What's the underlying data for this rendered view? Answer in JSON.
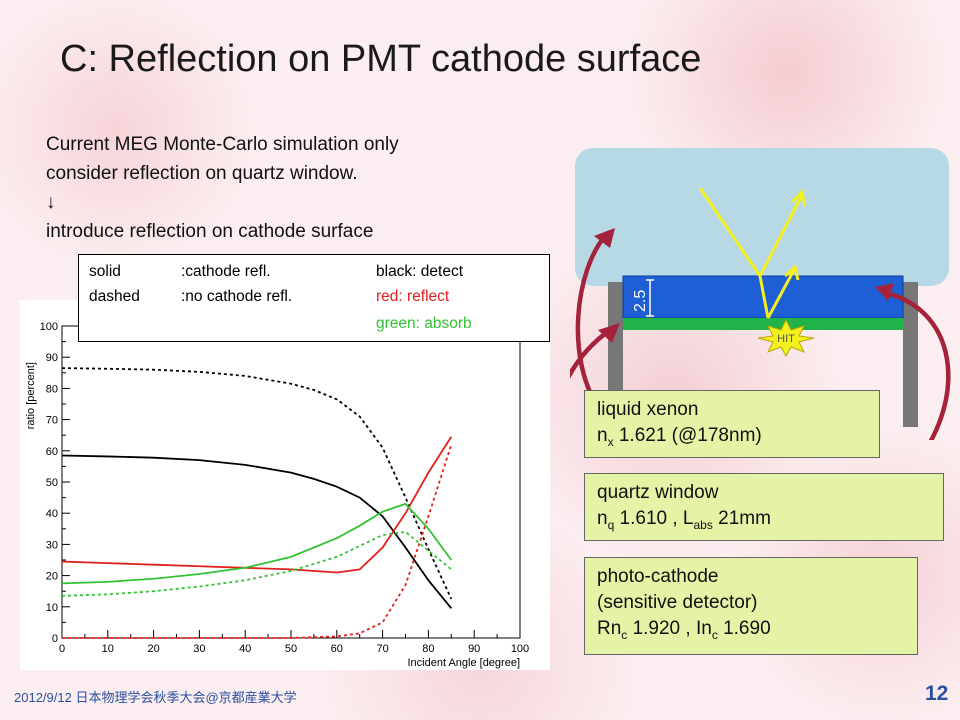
{
  "title": "C: Reflection on PMT cathode surface",
  "intro": {
    "line1": "Current MEG Monte-Carlo simulation only",
    "line2": "consider reflection on quartz window.",
    "arrow": "↓",
    "line3": "introduce reflection on cathode surface"
  },
  "legend": {
    "solid": "solid",
    "solid_desc": ":cathode refl.",
    "dashed": "dashed",
    "dashed_desc": ":no cathode refl.",
    "black": "black: detect",
    "red": "red: reflect",
    "green": "green: absorb"
  },
  "colors": {
    "detect": "#000000",
    "reflect": "#e0201c",
    "absorb": "#33c233",
    "xenon": "#b7d9e6",
    "quartz": "#1e5fd6",
    "cathode": "#21b34a",
    "arrow": "#a4233a",
    "ray": "#f4ef1e",
    "box": "#e4f3a6"
  },
  "chart_data": {
    "type": "line",
    "xlabel": "Incident Angle [degree]",
    "ylabel": "ratio [percent]",
    "xlim": [
      0,
      100
    ],
    "ylim": [
      0,
      100
    ],
    "xticks": [
      0,
      10,
      20,
      30,
      40,
      50,
      60,
      70,
      80,
      90,
      100
    ],
    "yticks": [
      0,
      10,
      20,
      30,
      40,
      50,
      60,
      70,
      80,
      90,
      100
    ],
    "grid": false,
    "series": [
      {
        "name": "black: detect",
        "legend_row": "solid",
        "color": "#000000",
        "style": "solid",
        "x": [
          0,
          10,
          20,
          30,
          40,
          50,
          55,
          60,
          65,
          70,
          75,
          80,
          85
        ],
        "y": [
          58.5,
          58.2,
          57.8,
          57,
          55.5,
          53,
          51,
          48.5,
          45,
          39,
          29,
          18.5,
          9.5
        ]
      },
      {
        "name": "black: detect",
        "legend_row": "dashed",
        "color": "#000000",
        "style": "dashed",
        "x": [
          0,
          10,
          20,
          30,
          40,
          50,
          55,
          60,
          65,
          70,
          75,
          80,
          85
        ],
        "y": [
          86.5,
          86.3,
          86,
          85.3,
          84,
          81.5,
          79.5,
          76.5,
          71,
          61,
          45,
          28.5,
          12.5
        ]
      },
      {
        "name": "red: reflect",
        "legend_row": "solid",
        "color": "#e0201c",
        "style": "solid",
        "x": [
          0,
          10,
          20,
          30,
          40,
          50,
          60,
          65,
          70,
          75,
          80,
          85
        ],
        "y": [
          24.5,
          24,
          23.5,
          23,
          22.5,
          22,
          21,
          22,
          29,
          40,
          53,
          64.5
        ]
      },
      {
        "name": "red: reflect",
        "legend_row": "dashed",
        "color": "#e0201c",
        "style": "dashed",
        "x": [
          0,
          10,
          20,
          30,
          40,
          50,
          60,
          65,
          70,
          75,
          80,
          85
        ],
        "y": [
          0,
          0,
          0,
          0,
          0,
          0,
          0.5,
          1.5,
          5,
          17,
          39,
          62
        ]
      },
      {
        "name": "green: absorb",
        "legend_row": "solid",
        "color": "#33c233",
        "style": "solid",
        "x": [
          0,
          10,
          20,
          30,
          40,
          50,
          60,
          65,
          70,
          75,
          80,
          85
        ],
        "y": [
          17.5,
          18,
          19,
          20.5,
          22.5,
          26,
          32,
          36,
          40.5,
          43,
          35,
          25
        ]
      },
      {
        "name": "green: absorb",
        "legend_row": "dashed",
        "color": "#33c233",
        "style": "dashed",
        "x": [
          0,
          10,
          20,
          30,
          40,
          50,
          60,
          65,
          70,
          75,
          80,
          85
        ],
        "y": [
          13.5,
          14,
          15,
          16.5,
          18.5,
          21.5,
          26,
          29.5,
          33,
          34,
          28,
          22
        ]
      }
    ]
  },
  "diagram": {
    "thickness_label": "2.5",
    "hit_label": "HIT",
    "box_xenon": {
      "line1": "liquid xenon",
      "n": "n",
      "n_sub": "x",
      "n_value": " 1.621 (@178nm)"
    },
    "box_quartz": {
      "line1": "quartz window",
      "n": "n",
      "n_sub": "q",
      "n_value": " 1.610 , L",
      "l_sub": "abs",
      "l_value": " 21mm"
    },
    "box_cathode": {
      "line1": "photo-cathode",
      "line2": "(sensitive detector)",
      "rn": "Rn",
      "rn_sub": "c",
      "rn_value": " 1.920 , In",
      "in_sub": "c",
      "in_value": " 1.690"
    }
  },
  "footer": "2012/9/12 日本物理学会秋季大会@京都産業大学",
  "page_number": "12"
}
